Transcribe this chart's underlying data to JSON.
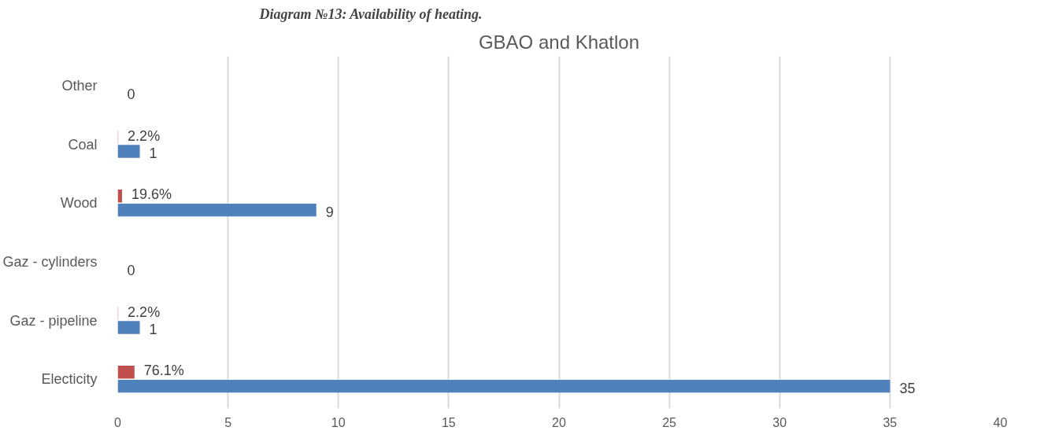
{
  "chart_data": {
    "type": "bar",
    "orientation": "horizontal",
    "title": "GBAO and Khatlon",
    "annotations": [
      "Diagram №13: Availability of heating."
    ],
    "categories": [
      "Other",
      "Coal",
      "Wood",
      "Gaz - cylinders",
      "Gaz - pipeline",
      "Electicity"
    ],
    "series": [
      {
        "color": "#4f81bd",
        "values": [
          0,
          1,
          9,
          0,
          1,
          35
        ],
        "value_labels": [
          "0",
          "1",
          "9",
          "0",
          "1",
          "35"
        ]
      },
      {
        "color": "#c0504d",
        "values": [
          0,
          0.022,
          0.196,
          0,
          0.022,
          0.761
        ],
        "value_labels": [
          null,
          "2.2%",
          "19.6%",
          null,
          "2.2%",
          "76.1%"
        ]
      }
    ],
    "xlim": [
      0,
      40
    ],
    "xticks": [
      0,
      5,
      10,
      15,
      20,
      25,
      30,
      35,
      40
    ],
    "grid": "x"
  }
}
